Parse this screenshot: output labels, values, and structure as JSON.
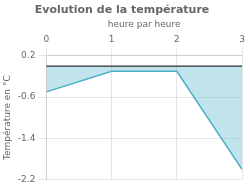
{
  "chart_data": {
    "type": "line",
    "title": "Evolution de la température",
    "xlabel": "heure par heure",
    "ylabel": "Température en °C",
    "x": [
      0,
      1,
      2,
      3
    ],
    "series": [
      {
        "name": "Température",
        "color": "#4ab0c8",
        "values": [
          -0.5,
          -0.1,
          -0.1,
          -2.0
        ]
      }
    ],
    "xlim": [
      0,
      3
    ],
    "ylim": [
      -2.2,
      0.2
    ],
    "xticks": [
      0,
      1,
      2,
      3
    ],
    "yticks": [
      0.2,
      -0.6,
      -1.4,
      -2.2
    ],
    "grid": true
  }
}
